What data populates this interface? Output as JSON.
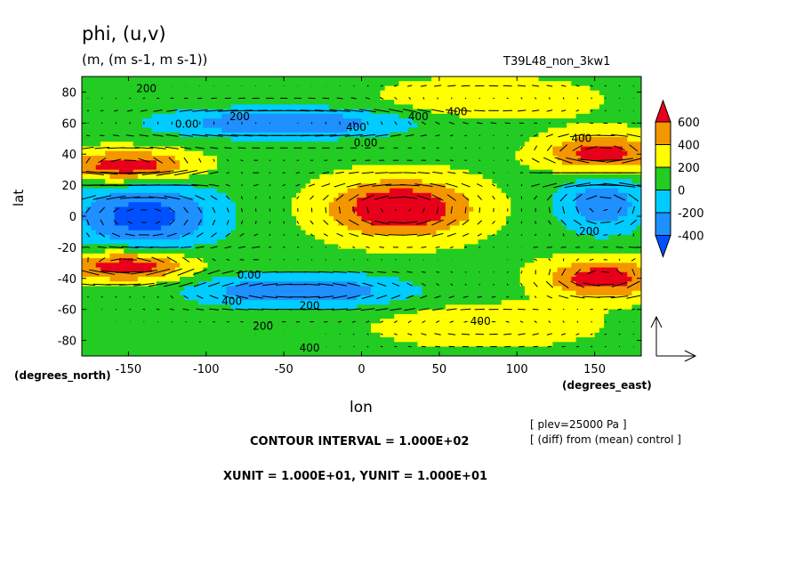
{
  "title": "phi, (u,v)",
  "units": "(m, (m s-1, m s-1))",
  "experiment": "T39L48_non_3kw1",
  "pressure_note": "[ plev=25000 Pa ]",
  "diff_note": "[ (diff) from (mean) control ]",
  "contour_interval_text": "CONTOUR INTERVAL = 1.000E+02",
  "unit_vector_text": "XUNIT = 1.000E+01, YUNIT = 1.000E+01",
  "chart_data": {
    "type": "heatmap",
    "title": "phi, (u,v)",
    "xlabel": "lon",
    "xunits": "(degrees_east)",
    "ylabel": "lat",
    "yunits": "(degrees_north)",
    "xlim": [
      -180,
      180
    ],
    "ylim": [
      -90,
      90
    ],
    "xticks": [
      -150,
      -100,
      -50,
      0,
      50,
      100,
      150
    ],
    "yticks": [
      80,
      60,
      40,
      20,
      0,
      -20,
      -40,
      -60,
      -80
    ],
    "colorbar": {
      "levels": [
        600,
        400,
        200,
        0,
        -200,
        -400
      ],
      "labels": [
        "600",
        "400",
        "200",
        "0",
        "-200",
        "-400"
      ],
      "colors": [
        "#e8001a",
        "#f39600",
        "#ffff00",
        "#22cc22",
        "#00ccff",
        "#1e90ff",
        "#0050ff"
      ]
    },
    "contour_labels": [
      "200",
      "200",
      "0.00",
      "400",
      "0.00",
      "400",
      "400",
      "400",
      "200",
      "0.00",
      "400",
      "200",
      "200",
      "400",
      "400"
    ]
  }
}
